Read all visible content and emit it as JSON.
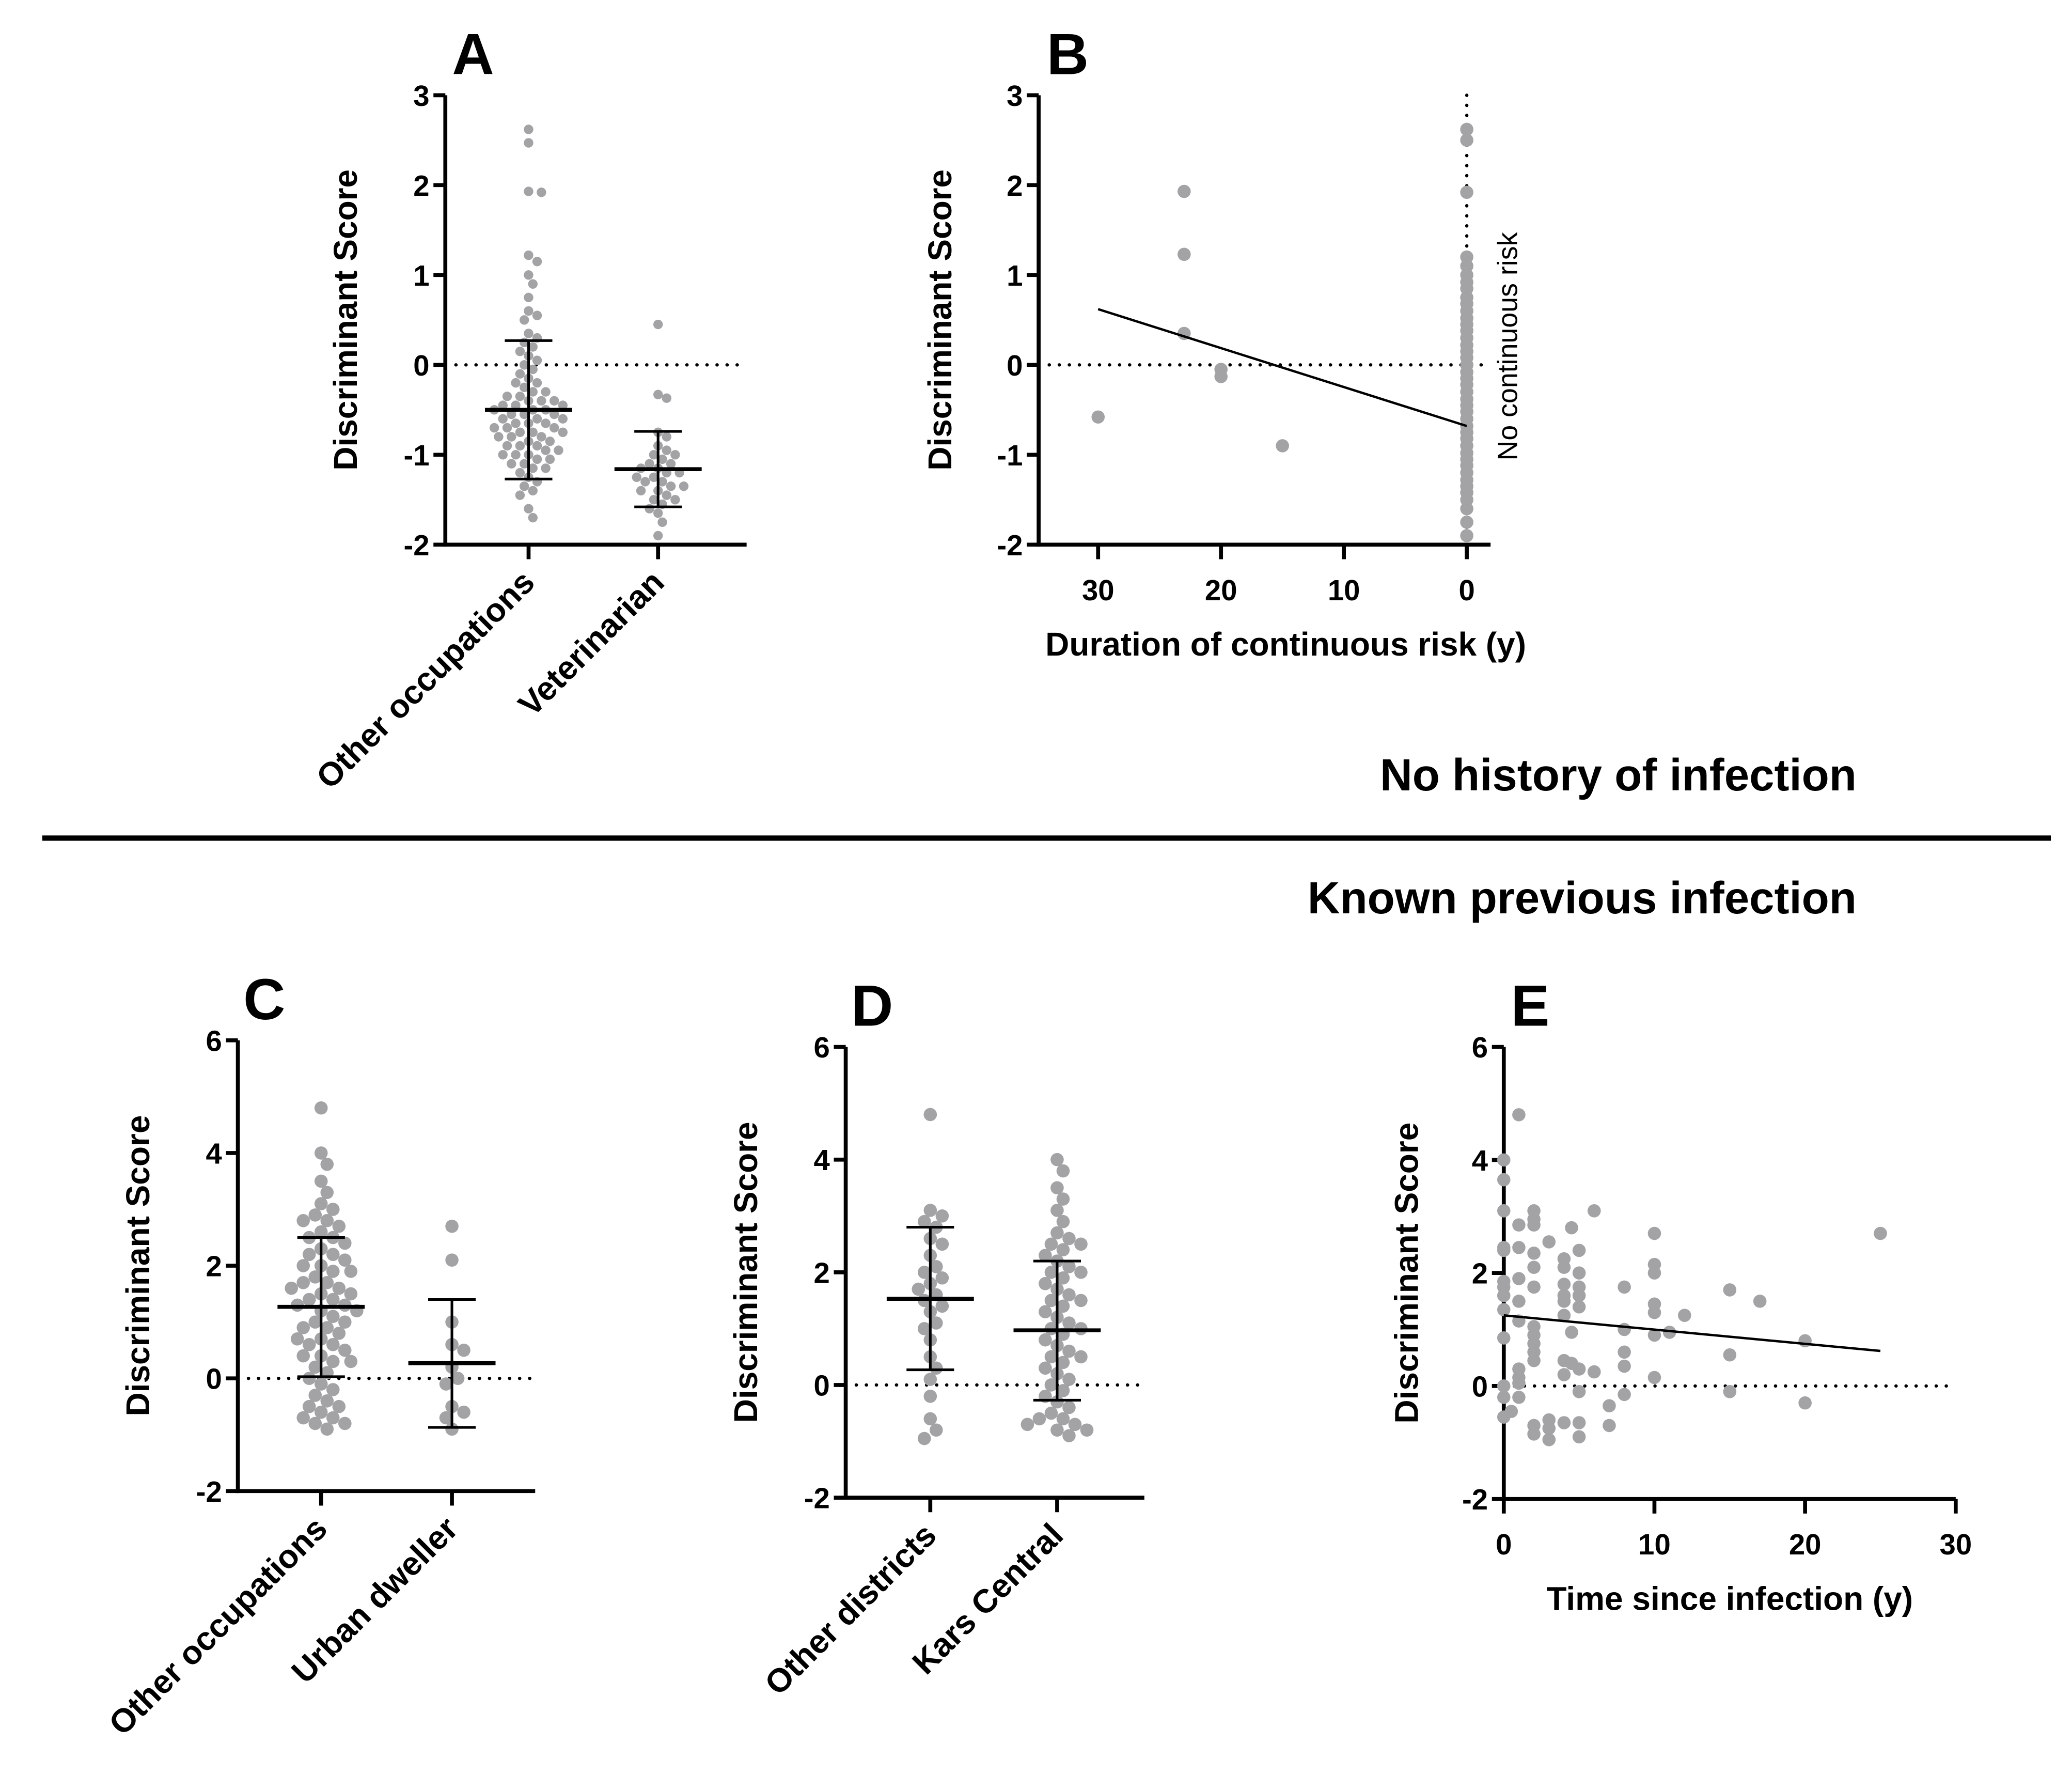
{
  "colors": {
    "dot": "#a3a3a6",
    "line": "#000000"
  },
  "sections": {
    "top": "No history of infection",
    "bottom": "Known previous infection"
  },
  "chart_data": [
    {
      "id": "A",
      "type": "scatter",
      "subtype": "dot-plot-mean-sd",
      "panel_label": "A",
      "ylabel": "Discriminant Score",
      "ylim": [
        -2,
        3
      ],
      "yticks": [
        -2,
        -1,
        0,
        1,
        2,
        3
      ],
      "reference_line_y": 0,
      "categories": [
        "Other occupations",
        "Veterinarian"
      ],
      "series": [
        {
          "name": "Other occupations",
          "mean": -0.5,
          "sd_low": -1.27,
          "sd_high": 0.27,
          "values": [
            2.62,
            2.47,
            1.93,
            1.92,
            1.22,
            1.15,
            1.0,
            0.9,
            0.75,
            0.6,
            0.55,
            0.5,
            0.35,
            0.3,
            0.25,
            0.2,
            0.15,
            0.1,
            0.05,
            0.0,
            -0.05,
            -0.1,
            -0.15,
            -0.2,
            -0.2,
            -0.25,
            -0.3,
            -0.3,
            -0.35,
            -0.35,
            -0.4,
            -0.4,
            -0.4,
            -0.45,
            -0.45,
            -0.45,
            -0.5,
            -0.5,
            -0.5,
            -0.55,
            -0.55,
            -0.55,
            -0.6,
            -0.6,
            -0.6,
            -0.65,
            -0.65,
            -0.65,
            -0.7,
            -0.7,
            -0.7,
            -0.75,
            -0.75,
            -0.75,
            -0.8,
            -0.8,
            -0.8,
            -0.85,
            -0.85,
            -0.9,
            -0.9,
            -0.9,
            -0.95,
            -0.95,
            -1.0,
            -1.0,
            -1.0,
            -1.05,
            -1.05,
            -1.1,
            -1.1,
            -1.15,
            -1.15,
            -1.2,
            -1.25,
            -1.3,
            -1.35,
            -1.4,
            -1.45,
            -1.6,
            -1.7
          ]
        },
        {
          "name": "Veterinarian",
          "mean": -1.16,
          "sd_low": -1.58,
          "sd_high": -0.74,
          "values": [
            0.45,
            -0.33,
            -0.37,
            -0.75,
            -0.8,
            -0.9,
            -0.95,
            -1.0,
            -1.0,
            -1.05,
            -1.1,
            -1.1,
            -1.15,
            -1.15,
            -1.2,
            -1.2,
            -1.25,
            -1.25,
            -1.3,
            -1.3,
            -1.35,
            -1.35,
            -1.4,
            -1.4,
            -1.45,
            -1.5,
            -1.5,
            -1.55,
            -1.6,
            -1.65,
            -1.75,
            -1.9
          ]
        }
      ]
    },
    {
      "id": "B",
      "type": "scatter",
      "panel_label": "B",
      "xlabel": "Duration of continuous risk (y)",
      "ylabel": "Discriminant Score",
      "xlim": [
        35,
        0
      ],
      "xticks": [
        30,
        20,
        10,
        0
      ],
      "x_reversed": true,
      "ylim": [
        -2,
        3
      ],
      "yticks": [
        -2,
        -1,
        0,
        1,
        2,
        3
      ],
      "reference_line_y": 0,
      "reference_line_x": 0,
      "annotation": "No continuous risk",
      "regression": {
        "x": [
          30,
          0
        ],
        "y": [
          0.62,
          -0.68
        ]
      },
      "points": [
        [
          30,
          -0.58
        ],
        [
          23,
          1.93
        ],
        [
          23,
          1.23
        ],
        [
          23,
          0.35
        ],
        [
          20,
          -0.05
        ],
        [
          20,
          -0.13
        ],
        [
          15,
          -0.9
        ],
        [
          0,
          2.62
        ],
        [
          0,
          2.5
        ],
        [
          0,
          1.92
        ],
        [
          0,
          1.2
        ],
        [
          0,
          1.1
        ],
        [
          0,
          1.0
        ],
        [
          0,
          0.92
        ],
        [
          0,
          0.85
        ],
        [
          0,
          0.75
        ],
        [
          0,
          0.68
        ],
        [
          0,
          0.6
        ],
        [
          0,
          0.52
        ],
        [
          0,
          0.45
        ],
        [
          0,
          0.38
        ],
        [
          0,
          0.3
        ],
        [
          0,
          0.22
        ],
        [
          0,
          0.15
        ],
        [
          0,
          0.08
        ],
        [
          0,
          0.0
        ],
        [
          0,
          -0.08
        ],
        [
          0,
          -0.15
        ],
        [
          0,
          -0.22
        ],
        [
          0,
          -0.3
        ],
        [
          0,
          -0.38
        ],
        [
          0,
          -0.45
        ],
        [
          0,
          -0.52
        ],
        [
          0,
          -0.6
        ],
        [
          0,
          -0.68
        ],
        [
          0,
          -0.75
        ],
        [
          0,
          -0.82
        ],
        [
          0,
          -0.9
        ],
        [
          0,
          -0.98
        ],
        [
          0,
          -1.05
        ],
        [
          0,
          -1.12
        ],
        [
          0,
          -1.2
        ],
        [
          0,
          -1.28
        ],
        [
          0,
          -1.35
        ],
        [
          0,
          -1.42
        ],
        [
          0,
          -1.5
        ],
        [
          0,
          -1.6
        ],
        [
          0,
          -1.75
        ],
        [
          0,
          -1.9
        ]
      ]
    },
    {
      "id": "C",
      "type": "scatter",
      "subtype": "dot-plot-mean-sd",
      "panel_label": "C",
      "ylabel": "Discriminant Score",
      "ylim": [
        -2,
        6
      ],
      "yticks": [
        -2,
        0,
        2,
        4,
        6
      ],
      "reference_line_y": 0,
      "categories": [
        "Other occupations",
        "Urban dweller"
      ],
      "series": [
        {
          "name": "Other occupations",
          "mean": 1.27,
          "sd_low": 0.03,
          "sd_high": 2.5,
          "values": [
            4.8,
            4.0,
            3.8,
            3.5,
            3.3,
            3.1,
            3.0,
            2.9,
            2.8,
            2.7,
            2.6,
            2.5,
            2.4,
            2.3,
            2.2,
            2.1,
            2.0,
            1.9,
            1.8,
            1.7,
            1.6,
            1.5,
            1.4,
            1.3,
            1.2,
            1.1,
            1.0,
            0.9,
            0.8,
            0.7,
            0.6,
            0.5,
            0.4,
            0.3,
            0.2,
            0.1,
            0.0,
            -0.1,
            -0.2,
            -0.3,
            -0.4,
            -0.5,
            -0.6,
            -0.7,
            -0.8,
            -0.9,
            2.5,
            2.2,
            1.9,
            1.6,
            1.3,
            1.0,
            0.7,
            0.4,
            2.8,
            1.5,
            1.2,
            0.9,
            -0.7,
            -0.8,
            2.0,
            1.7,
            1.4,
            0.6,
            0.3,
            -0.5
          ]
        },
        {
          "name": "Urban dweller",
          "mean": 0.27,
          "sd_low": -0.87,
          "sd_high": 1.4,
          "values": [
            2.7,
            2.1,
            1.0,
            0.6,
            0.5,
            0.2,
            0.0,
            -0.1,
            -0.5,
            -0.6,
            -0.7,
            -0.9
          ]
        }
      ]
    },
    {
      "id": "D",
      "type": "scatter",
      "subtype": "dot-plot-mean-sd",
      "panel_label": "D",
      "ylabel": "Discriminant Score",
      "ylim": [
        -2,
        6
      ],
      "yticks": [
        -2,
        0,
        2,
        4,
        6
      ],
      "reference_line_y": 0,
      "categories": [
        "Other districts",
        "Kars Central"
      ],
      "series": [
        {
          "name": "Other districts",
          "mean": 1.53,
          "sd_low": 0.27,
          "sd_high": 2.8,
          "values": [
            4.8,
            3.1,
            3.0,
            2.9,
            2.8,
            2.6,
            2.5,
            2.3,
            2.1,
            2.0,
            1.9,
            1.8,
            1.7,
            1.6,
            1.5,
            1.4,
            1.3,
            1.1,
            1.0,
            0.8,
            0.5,
            0.3,
            0.1,
            -0.2,
            -0.6,
            -0.8,
            -0.95
          ]
        },
        {
          "name": "Kars Central",
          "mean": 0.97,
          "sd_low": -0.27,
          "sd_high": 2.2,
          "values": [
            4.0,
            3.8,
            3.5,
            3.3,
            3.1,
            2.9,
            2.7,
            2.6,
            2.5,
            2.4,
            2.3,
            2.2,
            2.1,
            2.0,
            1.9,
            1.8,
            1.7,
            1.6,
            1.5,
            1.4,
            1.3,
            1.2,
            1.1,
            1.0,
            0.9,
            0.8,
            0.7,
            0.6,
            0.5,
            0.4,
            0.3,
            0.2,
            0.1,
            0.0,
            -0.1,
            -0.2,
            -0.3,
            -0.4,
            -0.5,
            -0.6,
            -0.7,
            -0.7,
            -0.8,
            -0.8,
            -0.9,
            2.5,
            2.0,
            1.5,
            1.0,
            0.5,
            -0.6
          ]
        }
      ]
    },
    {
      "id": "E",
      "type": "scatter",
      "panel_label": "E",
      "xlabel": "Time since infection (y)",
      "ylabel": "Discriminant Score",
      "xlim": [
        0,
        30
      ],
      "xticks": [
        0,
        10,
        20,
        30
      ],
      "ylim": [
        -2,
        6
      ],
      "yticks": [
        -2,
        0,
        2,
        4,
        6
      ],
      "reference_line_y": 0,
      "regression": {
        "x": [
          0,
          25
        ],
        "y": [
          1.25,
          0.62
        ]
      },
      "points": [
        [
          0,
          4.0
        ],
        [
          0,
          3.65
        ],
        [
          0,
          3.1
        ],
        [
          0,
          2.45
        ],
        [
          0,
          2.4
        ],
        [
          0,
          1.85
        ],
        [
          0,
          1.75
        ],
        [
          0,
          1.6
        ],
        [
          0,
          1.35
        ],
        [
          0,
          0.85
        ],
        [
          0,
          0.0
        ],
        [
          0,
          -0.2
        ],
        [
          0,
          -0.55
        ],
        [
          0.5,
          -0.45
        ],
        [
          1,
          4.8
        ],
        [
          1,
          2.85
        ],
        [
          1,
          2.45
        ],
        [
          1,
          1.9
        ],
        [
          1,
          1.5
        ],
        [
          1,
          1.15
        ],
        [
          1,
          0.3
        ],
        [
          1,
          0.15
        ],
        [
          1,
          0.05
        ],
        [
          1,
          -0.2
        ],
        [
          2,
          3.1
        ],
        [
          2,
          2.95
        ],
        [
          2,
          2.85
        ],
        [
          2,
          2.35
        ],
        [
          2,
          2.1
        ],
        [
          2,
          1.75
        ],
        [
          2,
          1.05
        ],
        [
          2,
          0.9
        ],
        [
          2,
          0.75
        ],
        [
          2,
          0.6
        ],
        [
          2,
          0.45
        ],
        [
          2,
          -0.7
        ],
        [
          2,
          -0.85
        ],
        [
          3,
          2.55
        ],
        [
          3,
          -0.6
        ],
        [
          3,
          -0.75
        ],
        [
          3,
          -0.95
        ],
        [
          4,
          2.25
        ],
        [
          4,
          2.1
        ],
        [
          4,
          1.8
        ],
        [
          4,
          1.6
        ],
        [
          4,
          1.5
        ],
        [
          4,
          1.25
        ],
        [
          4,
          0.45
        ],
        [
          4,
          0.2
        ],
        [
          4,
          -0.65
        ],
        [
          4.5,
          2.8
        ],
        [
          4.5,
          0.95
        ],
        [
          4.5,
          0.4
        ],
        [
          5,
          2.4
        ],
        [
          5,
          2.0
        ],
        [
          5,
          1.75
        ],
        [
          5,
          1.6
        ],
        [
          5,
          1.4
        ],
        [
          5,
          0.3
        ],
        [
          5,
          -0.1
        ],
        [
          5,
          -0.65
        ],
        [
          5,
          -0.9
        ],
        [
          6,
          3.1
        ],
        [
          6,
          0.25
        ],
        [
          7,
          -0.35
        ],
        [
          7,
          -0.7
        ],
        [
          8,
          1.75
        ],
        [
          8,
          1.0
        ],
        [
          8,
          0.6
        ],
        [
          8,
          0.35
        ],
        [
          8,
          -0.15
        ],
        [
          10,
          2.7
        ],
        [
          10,
          2.15
        ],
        [
          10,
          2.0
        ],
        [
          10,
          1.45
        ],
        [
          10,
          1.3
        ],
        [
          10,
          0.9
        ],
        [
          10,
          0.15
        ],
        [
          11,
          0.95
        ],
        [
          12,
          1.25
        ],
        [
          15,
          1.7
        ],
        [
          15,
          0.55
        ],
        [
          15,
          -0.1
        ],
        [
          17,
          1.5
        ],
        [
          20,
          0.8
        ],
        [
          20,
          -0.3
        ],
        [
          25,
          2.7
        ]
      ]
    }
  ]
}
